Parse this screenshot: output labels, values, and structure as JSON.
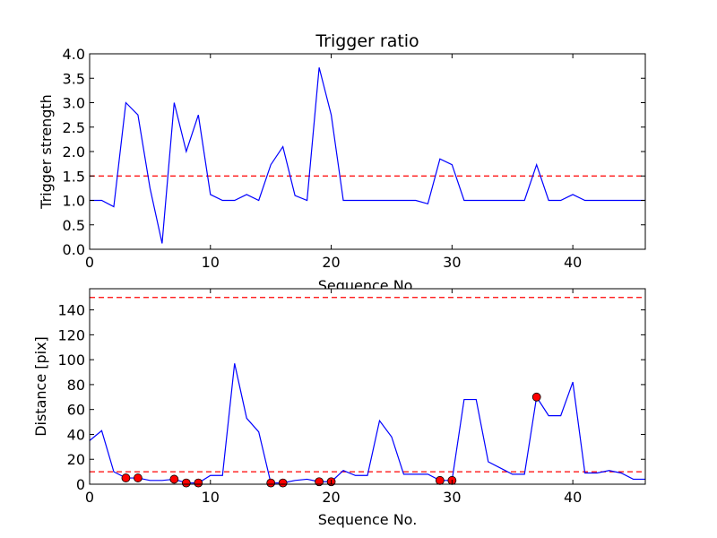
{
  "chart_data": [
    {
      "type": "line",
      "title": "Trigger ratio",
      "xlabel": "Sequence No.",
      "ylabel": "Trigger strength",
      "xlim": [
        0,
        46
      ],
      "ylim": [
        0,
        4.0
      ],
      "xticks": [
        "0",
        "10",
        "20",
        "30",
        "40"
      ],
      "yticks": [
        "0.0",
        "0.5",
        "1.0",
        "1.5",
        "2.0",
        "2.5",
        "3.0",
        "3.5",
        "4.0"
      ],
      "grid": false,
      "series": [
        {
          "color": "#0000ff",
          "x": [
            0,
            1,
            2,
            3,
            4,
            5,
            6,
            7,
            8,
            9,
            10,
            11,
            12,
            13,
            14,
            15,
            16,
            17,
            18,
            19,
            20,
            21,
            22,
            23,
            24,
            25,
            26,
            27,
            28,
            29,
            30,
            31,
            32,
            33,
            34,
            35,
            36,
            37,
            38,
            39,
            40,
            41,
            42,
            43,
            44,
            45,
            46
          ],
          "values": [
            1.0,
            1.0,
            0.87,
            3.0,
            2.75,
            1.25,
            0.12,
            3.0,
            2.0,
            2.75,
            1.12,
            1.0,
            1.0,
            1.12,
            1.0,
            1.73,
            2.1,
            1.1,
            1.0,
            3.72,
            2.75,
            1.0,
            1.0,
            1.0,
            1.0,
            1.0,
            1.0,
            1.0,
            0.93,
            1.85,
            1.73,
            1.0,
            1.0,
            1.0,
            1.0,
            1.0,
            1.0,
            1.73,
            1.0,
            1.0,
            1.12,
            1.0,
            1.0,
            1.0,
            1.0,
            1.0,
            1.0
          ]
        }
      ],
      "threshold": {
        "value": 1.5,
        "color": "#ff0000",
        "style": "dashed"
      }
    },
    {
      "type": "line",
      "title": "",
      "xlabel": "Sequence No.",
      "ylabel": "Distance [pix]",
      "xlim": [
        0,
        46
      ],
      "ylim": [
        0,
        157
      ],
      "xticks": [
        "0",
        "10",
        "20",
        "30",
        "40"
      ],
      "yticks": [
        "0",
        "20",
        "40",
        "60",
        "80",
        "100",
        "120",
        "140"
      ],
      "grid": false,
      "series": [
        {
          "color": "#0000ff",
          "x": [
            0,
            1,
            2,
            3,
            4,
            5,
            6,
            7,
            8,
            9,
            10,
            11,
            12,
            13,
            14,
            15,
            16,
            17,
            18,
            19,
            20,
            21,
            22,
            23,
            24,
            25,
            26,
            27,
            28,
            29,
            30,
            31,
            32,
            33,
            34,
            35,
            36,
            37,
            38,
            39,
            40,
            41,
            42,
            43,
            44,
            45,
            46
          ],
          "values": [
            35,
            43,
            10,
            5,
            5,
            3,
            3,
            4,
            1,
            1,
            7,
            7,
            97,
            53,
            42,
            1,
            1,
            3,
            4,
            2,
            2,
            11,
            7,
            7,
            51,
            38,
            8,
            8,
            8,
            3,
            3,
            68,
            68,
            18,
            13,
            8,
            8,
            70,
            55,
            55,
            82,
            9,
            9,
            11,
            9,
            4,
            4
          ]
        },
        {
          "type": "scatter",
          "color": "#ff0000",
          "x": [
            3,
            4,
            7,
            8,
            9,
            15,
            16,
            19,
            20,
            29,
            30,
            37
          ],
          "values": [
            5,
            5,
            4,
            1,
            1,
            1,
            1,
            2,
            2,
            3,
            3,
            70
          ]
        }
      ],
      "thresholds": [
        {
          "value": 150,
          "color": "#ff0000",
          "style": "dashed"
        },
        {
          "value": 10,
          "color": "#ff0000",
          "style": "dashed"
        }
      ]
    }
  ]
}
